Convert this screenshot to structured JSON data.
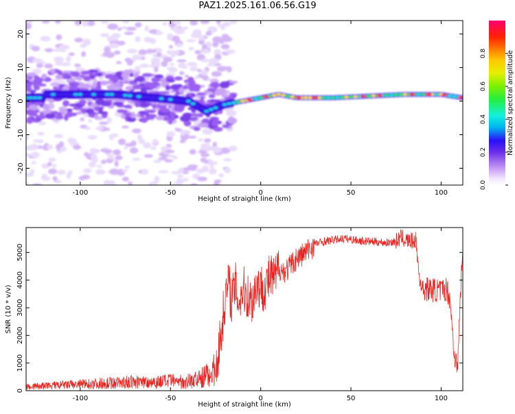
{
  "title": "PAZ1.2025.161.06.56.G19",
  "colors": {
    "snr_line": "#e8231f",
    "frame": "#000000"
  },
  "chart_data": [
    {
      "type": "heatmap",
      "xlabel": "Height of straight line (km)",
      "ylabel": "Frequency (Hz)",
      "xlim": [
        -130,
        112
      ],
      "ylim": [
        -25,
        24
      ],
      "xticks": [
        -100,
        -50,
        0,
        50,
        100
      ],
      "yticks": [
        -20,
        -10,
        0,
        10,
        20
      ],
      "colorbar": {
        "label": "Normalized spectral amplitude",
        "range": [
          0,
          1
        ],
        "ticks": [
          "0.0",
          "0.2",
          "0.4",
          "0.6",
          "0.8"
        ]
      },
      "ridge": [
        {
          "x": -120,
          "y": 2
        },
        {
          "x": -100,
          "y": 2
        },
        {
          "x": -80,
          "y": 2
        },
        {
          "x": -60,
          "y": 1
        },
        {
          "x": -40,
          "y": 0
        },
        {
          "x": -30,
          "y": -3
        },
        {
          "x": -20,
          "y": -1
        },
        {
          "x": -10,
          "y": 0
        },
        {
          "x": 0,
          "y": 1
        },
        {
          "x": 10,
          "y": 2
        },
        {
          "x": 20,
          "y": 1
        },
        {
          "x": 40,
          "y": 1
        },
        {
          "x": 60,
          "y": 1.5
        },
        {
          "x": 80,
          "y": 2
        },
        {
          "x": 100,
          "y": 2
        },
        {
          "x": 112,
          "y": 1
        }
      ]
    },
    {
      "type": "line",
      "xlabel": "Height of straight line (km)",
      "ylabel": "SNR (10 * v/v)",
      "xlim": [
        -130,
        112
      ],
      "ylim": [
        0,
        5900
      ],
      "xticks": [
        -100,
        -50,
        0,
        50,
        100
      ],
      "yticks": [
        0,
        1000,
        2000,
        3000,
        4000,
        5000
      ],
      "series": [
        {
          "x": [
            -130,
            -120,
            -110,
            -100,
            -90,
            -80,
            -70,
            -60,
            -50,
            -45,
            -40,
            -35,
            -30,
            -25,
            -22,
            -20,
            -18,
            -16,
            -14,
            -12,
            -10,
            -8,
            -5,
            -2,
            0,
            3,
            5,
            8,
            10,
            12,
            15,
            20,
            25,
            30,
            35,
            40,
            45,
            50,
            55,
            60,
            65,
            70,
            75,
            78,
            80,
            83,
            86,
            88,
            90,
            95,
            100,
            103,
            105,
            107,
            109,
            111,
            112
          ],
          "y": [
            150,
            170,
            200,
            230,
            260,
            290,
            310,
            320,
            340,
            330,
            350,
            400,
            550,
            800,
            2000,
            3200,
            3900,
            3300,
            3800,
            3200,
            3700,
            3500,
            3200,
            3900,
            3700,
            3800,
            4100,
            4000,
            4500,
            4300,
            4400,
            4800,
            5000,
            5300,
            5400,
            5450,
            5500,
            5480,
            5420,
            5400,
            5380,
            5350,
            5400,
            5550,
            5450,
            5400,
            5450,
            4000,
            3700,
            3650,
            3600,
            3700,
            3300,
            1500,
            700,
            4000,
            5000
          ]
        }
      ]
    }
  ]
}
